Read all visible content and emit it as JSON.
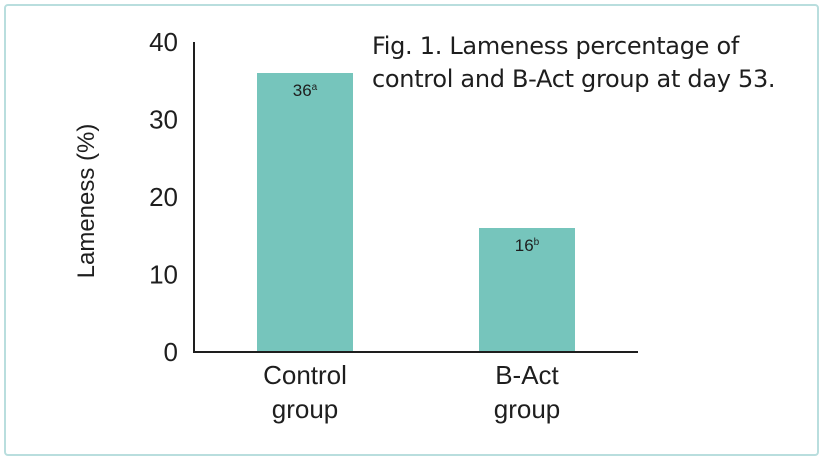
{
  "caption": {
    "line1": "Fig. 1. Lameness percentage of",
    "line2": "control and B-Act group at day 53."
  },
  "chart_data": {
    "type": "bar",
    "title": "Fig. 1. Lameness percentage of control and B-Act group at day 53.",
    "xlabel": "",
    "ylabel": "Lameness (%)",
    "ylim": [
      0,
      40
    ],
    "yticks": [
      0,
      10,
      20,
      30,
      40
    ],
    "grid": false,
    "categories": [
      [
        "Control",
        "group"
      ],
      [
        "B-Act",
        "group"
      ]
    ],
    "values": [
      36,
      16
    ],
    "data_labels": [
      {
        "value": "36",
        "superscript": "a"
      },
      {
        "value": "16",
        "superscript": "b"
      }
    ],
    "bar_color": "#76c5bc",
    "border_color": "#b9dede"
  }
}
